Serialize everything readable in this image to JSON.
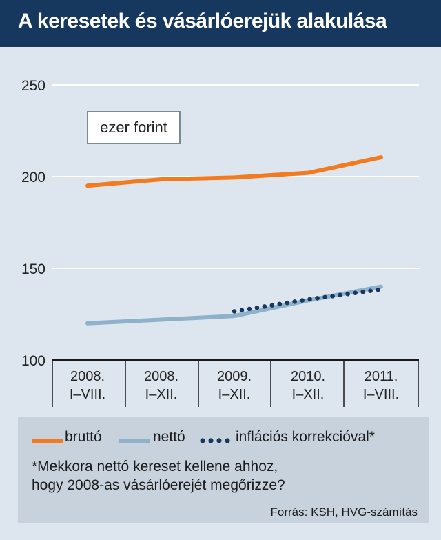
{
  "title": "A keresetek és vásárlóerejük alakulása",
  "unit_label": "ezer forint",
  "colors": {
    "header_bg": "#16385e",
    "panel_bg": "#dde6ee",
    "legend_bg": "#c7d2dc",
    "brutto": "#f47a1f",
    "netto": "#8fb1c9",
    "inflacios": "#16385e"
  },
  "chart_data": {
    "type": "line",
    "categories": [
      "2008. I–VIII.",
      "2008. I–XII.",
      "2009. I–XII.",
      "2010. I–XII.",
      "2011. I–VIII."
    ],
    "category_lines": [
      [
        "2008.",
        "I–VIII."
      ],
      [
        "2008.",
        "I–XII."
      ],
      [
        "2009.",
        "I–XII."
      ],
      [
        "2010.",
        "I–XII."
      ],
      [
        "2011.",
        "I–VIII."
      ]
    ],
    "ylim": [
      100,
      250
    ],
    "yticks": [
      100,
      150,
      200,
      250
    ],
    "grid": true,
    "series": [
      {
        "name": "bruttó",
        "style": "solid",
        "values": [
          195,
          198.5,
          199.5,
          202,
          210.5
        ]
      },
      {
        "name": "nettó",
        "style": "solid",
        "values": [
          120,
          122,
          124,
          132.5,
          140
        ]
      },
      {
        "name": "inflációs korrekcióval*",
        "style": "dotted",
        "values": [
          null,
          null,
          126.5,
          133,
          138.5
        ]
      }
    ]
  },
  "legend": {
    "brutto": "bruttó",
    "netto": "nettó",
    "inflacios": "inflációs korrekcióval*",
    "note_line1": "*Mekkora nettó kereset kellene ahhoz,",
    "note_line2": "hogy 2008-as vásárlóerejét megőrizze?",
    "source": "Forrás: KSH, HVG-számítás"
  }
}
